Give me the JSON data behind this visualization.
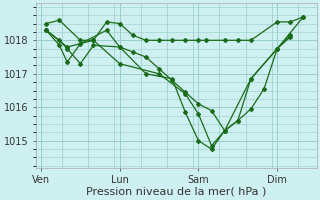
{
  "bg_color": "#cff0f0",
  "grid_color": "#99cccc",
  "line_color": "#1a6b1a",
  "marker_color": "#1a6b1a",
  "xlabel": "Pression niveau de la mer( hPa )",
  "xlabel_fontsize": 8,
  "ylim": [
    1014.2,
    1019.1
  ],
  "yticks": [
    1015,
    1016,
    1017,
    1018
  ],
  "xtick_labels": [
    "Ven",
    "Lun",
    "Sam",
    "Dim"
  ],
  "xtick_positions": [
    0,
    3,
    6,
    9
  ],
  "xmin": -0.2,
  "xmax": 10.5,
  "series1_x": [
    0.2,
    0.7,
    1.5,
    2.0,
    2.5,
    3.0,
    3.5,
    4.0,
    4.5,
    5.0,
    5.5,
    6.0,
    6.3,
    7.0,
    7.5,
    8.0,
    9.0,
    9.5,
    10.0
  ],
  "series1_y": [
    1018.5,
    1018.6,
    1018.0,
    1018.0,
    1018.55,
    1018.5,
    1018.15,
    1018.0,
    1018.0,
    1018.0,
    1018.0,
    1018.0,
    1018.0,
    1018.0,
    1018.0,
    1018.0,
    1018.55,
    1018.55,
    1018.7
  ],
  "series2_x": [
    0.2,
    0.7,
    1.0,
    1.5,
    2.0,
    3.0,
    3.5,
    4.0,
    4.5,
    5.0,
    5.5,
    6.0,
    6.5,
    7.0,
    7.5,
    8.0,
    8.5,
    9.0,
    9.5
  ],
  "series2_y": [
    1018.3,
    1018.0,
    1017.75,
    1017.3,
    1017.85,
    1017.8,
    1017.65,
    1017.5,
    1017.15,
    1016.8,
    1016.45,
    1016.1,
    1015.9,
    1015.3,
    1015.6,
    1015.95,
    1016.55,
    1017.75,
    1018.1
  ],
  "series3_x": [
    0.2,
    0.7,
    1.0,
    1.5,
    2.5,
    3.0,
    4.0,
    5.0,
    5.5,
    6.0,
    6.5,
    7.0,
    7.5,
    8.0,
    9.0,
    9.5
  ],
  "series3_y": [
    1018.3,
    1017.85,
    1017.35,
    1017.9,
    1018.3,
    1017.8,
    1017.0,
    1016.85,
    1015.85,
    1015.0,
    1014.75,
    1015.3,
    1015.6,
    1016.85,
    1017.75,
    1018.15
  ],
  "series4_x": [
    0.2,
    1.0,
    2.0,
    3.0,
    4.5,
    5.5,
    6.0,
    6.5,
    7.0,
    8.0,
    9.0,
    10.0
  ],
  "series4_y": [
    1018.3,
    1017.8,
    1018.0,
    1017.3,
    1017.0,
    1016.4,
    1015.8,
    1014.85,
    1015.3,
    1016.85,
    1017.75,
    1018.7
  ]
}
